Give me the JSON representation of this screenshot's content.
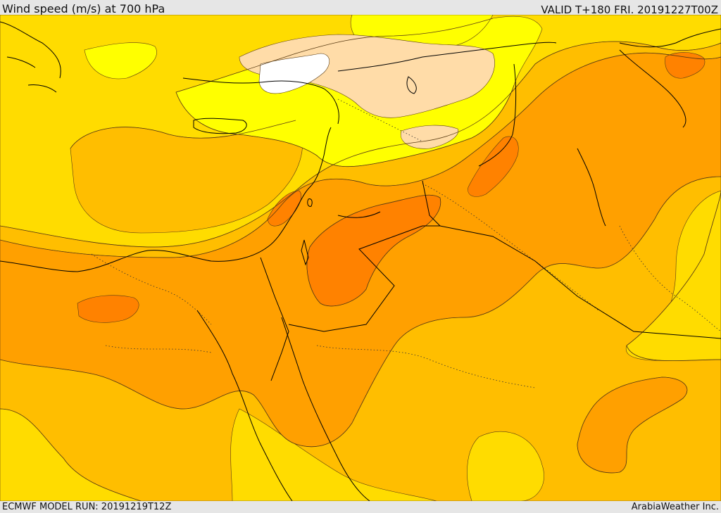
{
  "header": {
    "title": "Wind speed (m/s) at 700 hPa",
    "valid": "VALID T+180 FRI. 20191227T00Z"
  },
  "footer": {
    "model_run": "ECMWF MODEL RUN: 20191219T12Z",
    "credit": "ArabiaWeather Inc."
  },
  "colors": {
    "band_white": "#ffffff",
    "band_peach": "#ffdca8",
    "band_yellow": "#ffff00",
    "band_gold": "#ffdc00",
    "band_amber": "#ffbe00",
    "band_orange": "#ffa000",
    "band_dark_orange": "#ff8200",
    "coastline": "#000000",
    "contour": "#5a3c14"
  }
}
